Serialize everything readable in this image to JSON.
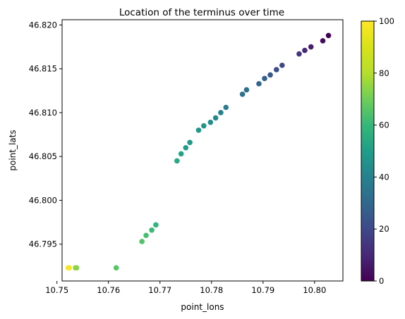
{
  "chart_data": {
    "type": "scatter",
    "title": "Location of the terminus over time",
    "xlabel": "point_lons",
    "ylabel": "point_lats",
    "xlim": [
      10.751,
      10.8055
    ],
    "ylim": [
      46.7908,
      46.8206
    ],
    "xticks": [
      "10.75",
      "10.76",
      "10.77",
      "10.78",
      "10.79",
      "10.80"
    ],
    "xtick_values": [
      10.75,
      10.76,
      10.77,
      10.78,
      10.79,
      10.8
    ],
    "yticks": [
      "46.795",
      "46.800",
      "46.805",
      "46.810",
      "46.815",
      "46.820"
    ],
    "ytick_values": [
      46.795,
      46.8,
      46.805,
      46.81,
      46.815,
      46.82
    ],
    "colorbar": {
      "colormap": "viridis",
      "min": 0,
      "max": 100,
      "ticks": [
        "0",
        "20",
        "40",
        "60",
        "80",
        "100"
      ],
      "tick_values": [
        0,
        20,
        40,
        60,
        80,
        100
      ]
    },
    "grid": false,
    "points": [
      {
        "x": 10.8027,
        "y": 46.8188,
        "c": 0
      },
      {
        "x": 10.8016,
        "y": 46.8182,
        "c": 3
      },
      {
        "x": 10.7993,
        "y": 46.8175,
        "c": 7
      },
      {
        "x": 10.7981,
        "y": 46.8171,
        "c": 10
      },
      {
        "x": 10.797,
        "y": 46.8167,
        "c": 14
      },
      {
        "x": 10.7937,
        "y": 46.8154,
        "c": 20
      },
      {
        "x": 10.7926,
        "y": 46.8149,
        "c": 22
      },
      {
        "x": 10.7914,
        "y": 46.8143,
        "c": 25
      },
      {
        "x": 10.7903,
        "y": 46.8139,
        "c": 27
      },
      {
        "x": 10.7892,
        "y": 46.8133,
        "c": 29
      },
      {
        "x": 10.7868,
        "y": 46.8126,
        "c": 32
      },
      {
        "x": 10.786,
        "y": 46.8121,
        "c": 34
      },
      {
        "x": 10.7828,
        "y": 46.8106,
        "c": 38
      },
      {
        "x": 10.7818,
        "y": 46.81,
        "c": 40
      },
      {
        "x": 10.7808,
        "y": 46.8094,
        "c": 42
      },
      {
        "x": 10.7798,
        "y": 46.8089,
        "c": 44
      },
      {
        "x": 10.7785,
        "y": 46.8085,
        "c": 46
      },
      {
        "x": 10.7775,
        "y": 46.808,
        "c": 47
      },
      {
        "x": 10.7758,
        "y": 46.8066,
        "c": 49
      },
      {
        "x": 10.775,
        "y": 46.806,
        "c": 50
      },
      {
        "x": 10.7741,
        "y": 46.8053,
        "c": 52
      },
      {
        "x": 10.7733,
        "y": 46.8045,
        "c": 54
      },
      {
        "x": 10.7692,
        "y": 46.7972,
        "c": 59
      },
      {
        "x": 10.7684,
        "y": 46.7966,
        "c": 61
      },
      {
        "x": 10.7673,
        "y": 46.796,
        "c": 63
      },
      {
        "x": 10.7665,
        "y": 46.7953,
        "c": 65
      },
      {
        "x": 10.7615,
        "y": 46.7923,
        "c": 66
      },
      {
        "x": 10.7538,
        "y": 46.7923,
        "c": 72
      },
      {
        "x": 10.7536,
        "y": 46.7923,
        "c": 74
      },
      {
        "x": 10.7524,
        "y": 46.7923,
        "c": 100
      },
      {
        "x": 10.7522,
        "y": 46.7923,
        "c": 98
      }
    ]
  }
}
